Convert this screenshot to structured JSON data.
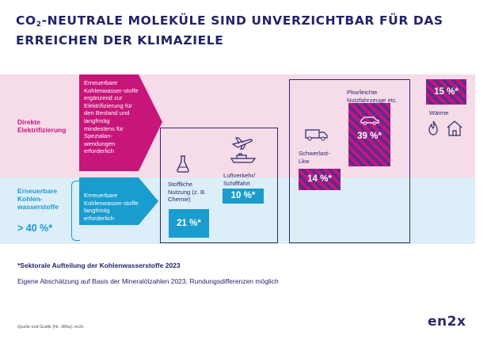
{
  "title_line1_a": "CO",
  "title_sub": "2",
  "title_line1_b": "-NEUTRALE MOLEKÜLE SIND UNVERZICHTBAR FÜR DAS",
  "title_line2": "ERREICHEN DER KLIMAZIELE",
  "rows": {
    "direct": "Direkte Elektrifizierung",
    "hydrocarbons": "Erneuerbare Kohlen-wasserstoffe",
    "hydrocarbons_pct": "> 40 %*"
  },
  "arrows": {
    "pink": "Erneuerbare Kohlenwasser-stoffe ergänzend zur Elektrifizierung für den Bestand und langfristig mindestens für Spezialan-wendungen erforderlich",
    "blue": "Erneuerbare Kohlenwasser-stoffe langfristig erforderlich"
  },
  "sectors": {
    "chemie": {
      "label": "Stoffliche Nutzung (z. B. Chemie)",
      "pct": "21 %*",
      "icon": "flask-icon"
    },
    "aviation": {
      "label": "Luftverkehr/ Schifffahrt",
      "pct": "10 %*",
      "icons": [
        "airplane-icon",
        "ship-icon"
      ]
    },
    "truck": {
      "label": "Schwerlast-Lkw",
      "pct": "14 %*",
      "icon": "truck-icon"
    },
    "cars": {
      "label": "Pkw/leichte Nutzfahrzeuge etc.",
      "pct": "39 %*",
      "icon": "car-icon"
    },
    "heat": {
      "label": "Wärme",
      "pct": "15 %*",
      "icons": [
        "flame-icon",
        "house-icon"
      ]
    }
  },
  "footnote_bold": "*Sektorale Aufteilung der Kohlenwasserstoffe 2023",
  "footnote": "Eigene Abschätzung auf Basis der Mineralölzahlen 2023, Rundungsdifferenzen möglich",
  "source": "Quelle und Grafik (Nr. 386a): en2x",
  "logo": "en2x",
  "colors": {
    "pink": "#c8157a",
    "blue": "#1a9ccf",
    "navy": "#2b2a6b",
    "purple": "#5b2d8e",
    "pink_band": "#f6dbe8",
    "blue_band": "#dceef8"
  }
}
